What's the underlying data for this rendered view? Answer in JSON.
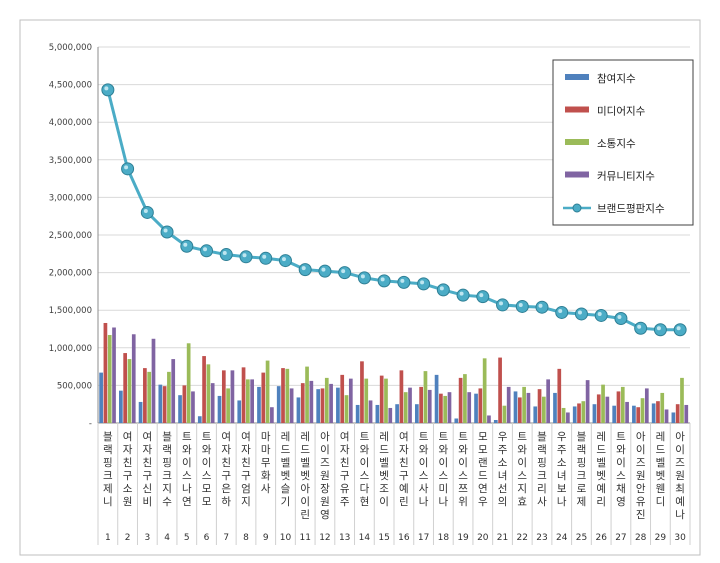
{
  "chart_data": {
    "type": "bar",
    "title": "",
    "xlabel": "",
    "ylabel": "",
    "ylim": [
      0,
      5000000
    ],
    "yticks": [
      0,
      500000,
      1000000,
      1500000,
      2000000,
      2500000,
      3000000,
      3500000,
      4000000,
      4500000,
      5000000
    ],
    "ytick_labels": [
      "-",
      "500,000",
      "1,000,000",
      "1,500,000",
      "2,000,000",
      "2,500,000",
      "3,000,000",
      "3,500,000",
      "4,000,000",
      "4,500,000",
      "5,000,000"
    ],
    "grid": true,
    "legend_position": "top-right",
    "categories": [
      "블랙핑크제니",
      "여자친구소원",
      "여자친구신비",
      "블랙핑크지수",
      "트와이스나연",
      "트와이스모모",
      "여자친구은하",
      "여자친구엄지",
      "마마무화사",
      "레드벨벳슬기",
      "레드벨벳아이린",
      "아이즈원장원영",
      "여자친구유주",
      "트와이스다현",
      "레드벨벳조이",
      "여자친구예린",
      "트와이스사나",
      "트와이스미나",
      "트와이스쯔위",
      "모모랜드연우",
      "우주소녀선의",
      "트와이스지효",
      "블랙핑크리사",
      "우주소녀보나",
      "블랙핑크로제",
      "레드벨벳예리",
      "트와이스채영",
      "아이즈원안유진",
      "레드벨벳웬디",
      "아이즈원최예나"
    ],
    "ranks": [
      "1",
      "2",
      "3",
      "4",
      "5",
      "6",
      "7",
      "8",
      "9",
      "10",
      "11",
      "12",
      "13",
      "14",
      "15",
      "16",
      "17",
      "18",
      "19",
      "20",
      "21",
      "22",
      "23",
      "24",
      "25",
      "26",
      "27",
      "28",
      "29",
      "30"
    ],
    "series": [
      {
        "name": "참여지수",
        "type": "bar",
        "color": "#4f81bd",
        "values": [
          670000,
          430000,
          280000,
          510000,
          370000,
          90000,
          360000,
          300000,
          480000,
          490000,
          340000,
          450000,
          470000,
          240000,
          240000,
          250000,
          250000,
          640000,
          60000,
          390000,
          40000,
          420000,
          220000,
          400000,
          220000,
          250000,
          230000,
          230000,
          260000,
          140000
        ]
      },
      {
        "name": "미디어지수",
        "type": "bar",
        "color": "#c0504d",
        "values": [
          1330000,
          930000,
          730000,
          490000,
          500000,
          890000,
          700000,
          740000,
          670000,
          730000,
          530000,
          460000,
          640000,
          820000,
          630000,
          700000,
          480000,
          390000,
          600000,
          460000,
          870000,
          340000,
          450000,
          720000,
          260000,
          380000,
          420000,
          210000,
          290000,
          250000
        ]
      },
      {
        "name": "소통지수",
        "type": "bar",
        "color": "#9bbb59",
        "values": [
          1170000,
          850000,
          680000,
          680000,
          1060000,
          780000,
          460000,
          580000,
          830000,
          720000,
          750000,
          600000,
          370000,
          590000,
          590000,
          410000,
          690000,
          360000,
          650000,
          860000,
          230000,
          480000,
          350000,
          200000,
          290000,
          510000,
          480000,
          330000,
          400000,
          600000
        ]
      },
      {
        "name": "커뮤니티지수",
        "type": "bar",
        "color": "#8064a2",
        "values": [
          1270000,
          1180000,
          1120000,
          850000,
          420000,
          530000,
          700000,
          580000,
          210000,
          460000,
          560000,
          520000,
          590000,
          300000,
          200000,
          470000,
          440000,
          410000,
          410000,
          100000,
          480000,
          400000,
          580000,
          140000,
          570000,
          350000,
          280000,
          460000,
          180000,
          240000
        ]
      },
      {
        "name": "브랜드평판지수",
        "type": "line",
        "color": "#4bacc6",
        "values": [
          4430000,
          3380000,
          2800000,
          2540000,
          2350000,
          2290000,
          2240000,
          2210000,
          2190000,
          2160000,
          2040000,
          2020000,
          2000000,
          1930000,
          1890000,
          1870000,
          1850000,
          1770000,
          1700000,
          1680000,
          1570000,
          1550000,
          1540000,
          1470000,
          1450000,
          1430000,
          1390000,
          1260000,
          1240000,
          1240000
        ]
      }
    ]
  }
}
